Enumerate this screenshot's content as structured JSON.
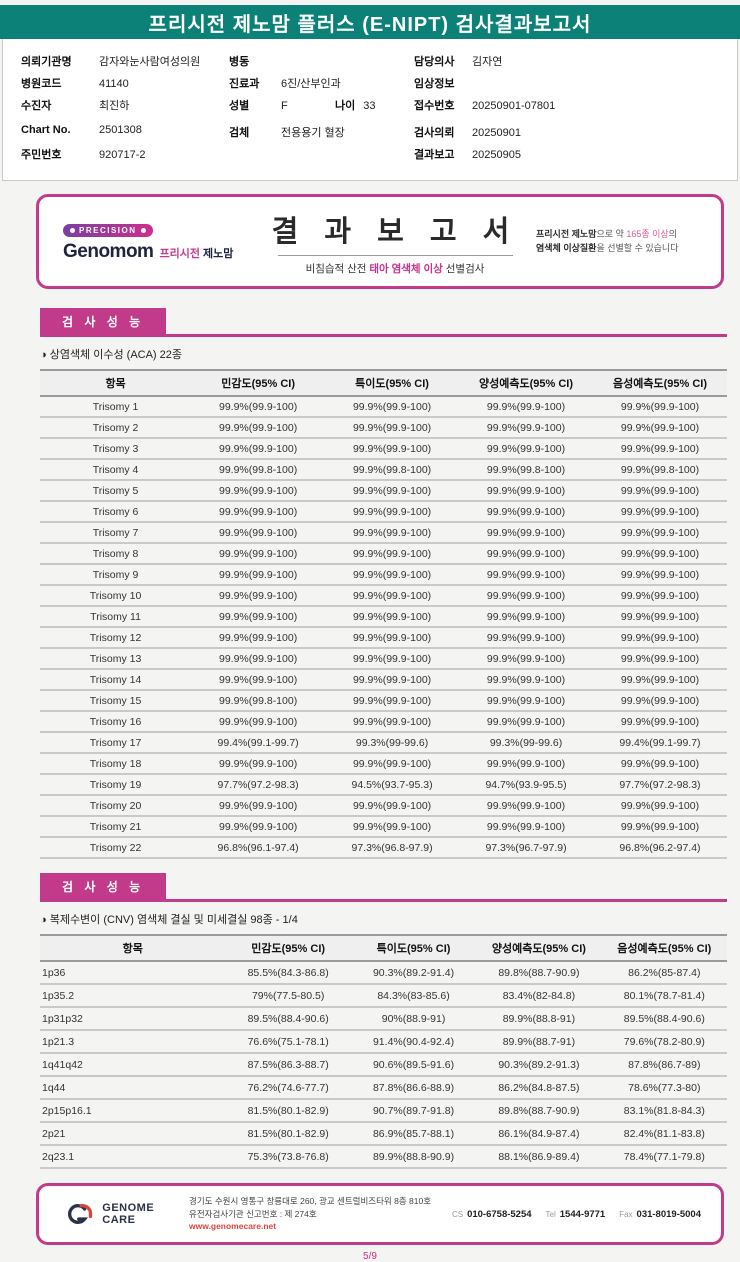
{
  "colors": {
    "teal": "#0b8178",
    "magenta": "#c23a8a",
    "red": "#e0433b"
  },
  "page": {
    "title": "프리시전 제노맘 플러스 (E-NIPT) 검사결과보고서",
    "page_number": "5/9"
  },
  "patient": {
    "col1": [
      {
        "label": "의뢰기관명",
        "value": "감자와눈사람여성의원"
      },
      {
        "label": "병원코드",
        "value": "41140"
      },
      {
        "label": "수진자",
        "value": "최진하"
      },
      {
        "label": "Chart No.",
        "value": "2501308"
      },
      {
        "label": "주민번호",
        "value": "920717-2"
      }
    ],
    "col2": [
      {
        "label": "병동",
        "value": ""
      },
      {
        "label": "진료과",
        "value": "6진/산부인과"
      },
      {
        "label": "성별",
        "value": "F",
        "label2": "나이",
        "value2": "33"
      },
      {
        "label": "검체",
        "value": "전용용기 혈장"
      }
    ],
    "col3": [
      {
        "label": "담당의사",
        "value": "김자연"
      },
      {
        "label": "임상정보",
        "value": ""
      },
      {
        "label": "접수번호",
        "value": "20250901-07801"
      },
      {
        "label": "검사의뢰",
        "value": "20250901"
      },
      {
        "label": "결과보고",
        "value": "20250905"
      }
    ]
  },
  "banner": {
    "badge": "PRECISION",
    "brand_en": "Genomom",
    "brand_kr_pink": "프리시전",
    "brand_kr_dark": "제노맘",
    "title": "결 과 보 고 서",
    "sub_prefix": "비침습적 산전 ",
    "sub_highlight": "태아 염색체 이상",
    "sub_suffix": " 선별검사",
    "note1_bold": "프리시전 제노맘",
    "note1_mid": "으로 약 ",
    "note1_pink": "165종 이상",
    "note1_end": "의",
    "note2_bold": "염색체 이상질환",
    "note2_end": "을 선별할 수 있습니다"
  },
  "section1": {
    "header": "검 사 성 능",
    "subtitle": "◑ 상염색체 이수성 (ACA) 22종",
    "columns": [
      "항목",
      "민감도(95% CI)",
      "특이도(95% CI)",
      "양성예측도(95% CI)",
      "음성예측도(95% CI)"
    ],
    "rows": [
      [
        "Trisomy 1",
        "99.9%(99.9-100)",
        "99.9%(99.9-100)",
        "99.9%(99.9-100)",
        "99.9%(99.9-100)"
      ],
      [
        "Trisomy 2",
        "99.9%(99.9-100)",
        "99.9%(99.9-100)",
        "99.9%(99.9-100)",
        "99.9%(99.9-100)"
      ],
      [
        "Trisomy 3",
        "99.9%(99.9-100)",
        "99.9%(99.9-100)",
        "99.9%(99.9-100)",
        "99.9%(99.9-100)"
      ],
      [
        "Trisomy 4",
        "99.9%(99.8-100)",
        "99.9%(99.8-100)",
        "99.9%(99.8-100)",
        "99.9%(99.8-100)"
      ],
      [
        "Trisomy 5",
        "99.9%(99.9-100)",
        "99.9%(99.9-100)",
        "99.9%(99.9-100)",
        "99.9%(99.9-100)"
      ],
      [
        "Trisomy 6",
        "99.9%(99.9-100)",
        "99.9%(99.9-100)",
        "99.9%(99.9-100)",
        "99.9%(99.9-100)"
      ],
      [
        "Trisomy 7",
        "99.9%(99.9-100)",
        "99.9%(99.9-100)",
        "99.9%(99.9-100)",
        "99.9%(99.9-100)"
      ],
      [
        "Trisomy 8",
        "99.9%(99.9-100)",
        "99.9%(99.9-100)",
        "99.9%(99.9-100)",
        "99.9%(99.9-100)"
      ],
      [
        "Trisomy 9",
        "99.9%(99.9-100)",
        "99.9%(99.9-100)",
        "99.9%(99.9-100)",
        "99.9%(99.9-100)"
      ],
      [
        "Trisomy 10",
        "99.9%(99.9-100)",
        "99.9%(99.9-100)",
        "99.9%(99.9-100)",
        "99.9%(99.9-100)"
      ],
      [
        "Trisomy 11",
        "99.9%(99.9-100)",
        "99.9%(99.9-100)",
        "99.9%(99.9-100)",
        "99.9%(99.9-100)"
      ],
      [
        "Trisomy 12",
        "99.9%(99.9-100)",
        "99.9%(99.9-100)",
        "99.9%(99.9-100)",
        "99.9%(99.9-100)"
      ],
      [
        "Trisomy 13",
        "99.9%(99.9-100)",
        "99.9%(99.9-100)",
        "99.9%(99.9-100)",
        "99.9%(99.9-100)"
      ],
      [
        "Trisomy 14",
        "99.9%(99.9-100)",
        "99.9%(99.9-100)",
        "99.9%(99.9-100)",
        "99.9%(99.9-100)"
      ],
      [
        "Trisomy 15",
        "99.9%(99.8-100)",
        "99.9%(99.9-100)",
        "99.9%(99.9-100)",
        "99.9%(99.9-100)"
      ],
      [
        "Trisomy 16",
        "99.9%(99.9-100)",
        "99.9%(99.9-100)",
        "99.9%(99.9-100)",
        "99.9%(99.9-100)"
      ],
      [
        "Trisomy 17",
        "99.4%(99.1-99.7)",
        "99.3%(99-99.6)",
        "99.3%(99-99.6)",
        "99.4%(99.1-99.7)"
      ],
      [
        "Trisomy 18",
        "99.9%(99.9-100)",
        "99.9%(99.9-100)",
        "99.9%(99.9-100)",
        "99.9%(99.9-100)"
      ],
      [
        "Trisomy 19",
        "97.7%(97.2-98.3)",
        "94.5%(93.7-95.3)",
        "94.7%(93.9-95.5)",
        "97.7%(97.2-98.3)"
      ],
      [
        "Trisomy 20",
        "99.9%(99.9-100)",
        "99.9%(99.9-100)",
        "99.9%(99.9-100)",
        "99.9%(99.9-100)"
      ],
      [
        "Trisomy 21",
        "99.9%(99.9-100)",
        "99.9%(99.9-100)",
        "99.9%(99.9-100)",
        "99.9%(99.9-100)"
      ],
      [
        "Trisomy 22",
        "96.8%(96.1-97.4)",
        "97.3%(96.8-97.9)",
        "97.3%(96.7-97.9)",
        "96.8%(96.2-97.4)"
      ]
    ]
  },
  "section2": {
    "header": "검 사 성 능",
    "subtitle": "◑ 복제수변이 (CNV) 염색체 결실 및 미세결실 98종 - 1/4",
    "columns": [
      "항목",
      "민감도(95% CI)",
      "특이도(95% CI)",
      "양성예측도(95% CI)",
      "음성예측도(95% CI)"
    ],
    "rows": [
      [
        "1p36",
        "85.5%(84.3-86.8)",
        "90.3%(89.2-91.4)",
        "89.8%(88.7-90.9)",
        "86.2%(85-87.4)"
      ],
      [
        "1p35.2",
        "79%(77.5-80.5)",
        "84.3%(83-85.6)",
        "83.4%(82-84.8)",
        "80.1%(78.7-81.4)"
      ],
      [
        "1p31p32",
        "89.5%(88.4-90.6)",
        "90%(88.9-91)",
        "89.9%(88.8-91)",
        "89.5%(88.4-90.6)"
      ],
      [
        "1p21.3",
        "76.6%(75.1-78.1)",
        "91.4%(90.4-92.4)",
        "89.9%(88.7-91)",
        "79.6%(78.2-80.9)"
      ],
      [
        "1q41q42",
        "87.5%(86.3-88.7)",
        "90.6%(89.5-91.6)",
        "90.3%(89.2-91.3)",
        "87.8%(86.7-89)"
      ],
      [
        "1q44",
        "76.2%(74.6-77.7)",
        "87.8%(86.6-88.9)",
        "86.2%(84.8-87.5)",
        "78.6%(77.3-80)"
      ],
      [
        "2p15p16.1",
        "81.5%(80.1-82.9)",
        "90.7%(89.7-91.8)",
        "89.8%(88.7-90.9)",
        "83.1%(81.8-84.3)"
      ],
      [
        "2p21",
        "81.5%(80.1-82.9)",
        "86.9%(85.7-88.1)",
        "86.1%(84.9-87.4)",
        "82.4%(81.1-83.8)"
      ],
      [
        "2q23.1",
        "75.3%(73.8-76.8)",
        "89.9%(88.8-90.9)",
        "88.1%(86.9-89.4)",
        "78.4%(77.1-79.8)"
      ]
    ]
  },
  "footer": {
    "logo_text": "GENOME CARE",
    "address_line1": "경기도 수원시 영통구 창룡대로 260, 광교 센트럴비즈타워 8층 810호",
    "address_line2": "유전자검사기관 신고번호 : 제 274호",
    "website": "www.genomecare.net",
    "cs_label": "CS",
    "cs_number": "010-6758-5254",
    "tel_label": "Tel",
    "tel_number": "1544-9771",
    "fax_label": "Fax",
    "fax_number": "031-8019-5004"
  }
}
